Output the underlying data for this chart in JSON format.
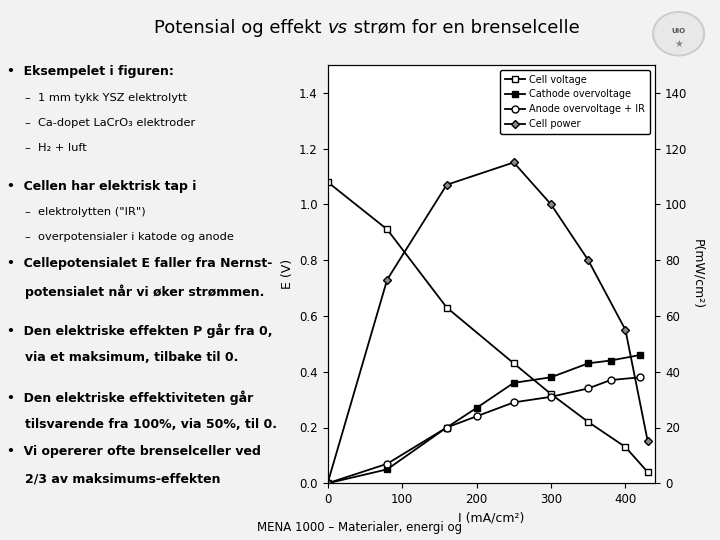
{
  "title_parts": [
    "Potensial og effekt ",
    "vs",
    " strøm for en brenselcelle"
  ],
  "xlabel": "I (mA/cm²)",
  "ylabel_left": "E (V)",
  "ylabel_right": "P(mW/cm²)",
  "xlim": [
    0,
    440
  ],
  "ylim_left": [
    0,
    1.5
  ],
  "ylim_right": [
    0,
    150
  ],
  "xticks": [
    0,
    100,
    200,
    300,
    400
  ],
  "yticks_left": [
    0.0,
    0.2,
    0.4,
    0.6,
    0.8,
    1.0,
    1.2,
    1.4
  ],
  "yticks_right": [
    0,
    20,
    40,
    60,
    80,
    100,
    120,
    140
  ],
  "cell_voltage_I": [
    0,
    80,
    160,
    250,
    300,
    350,
    400,
    430
  ],
  "cell_voltage_E": [
    1.08,
    0.91,
    0.63,
    0.43,
    0.32,
    0.22,
    0.13,
    0.04
  ],
  "cathode_over_I": [
    0,
    80,
    160,
    200,
    250,
    300,
    350,
    380,
    420
  ],
  "cathode_over_E": [
    0.0,
    0.05,
    0.2,
    0.27,
    0.36,
    0.38,
    0.43,
    0.44,
    0.46
  ],
  "anode_IR_I": [
    0,
    80,
    160,
    200,
    250,
    300,
    350,
    380,
    420
  ],
  "anode_IR_E": [
    0.0,
    0.07,
    0.2,
    0.24,
    0.29,
    0.31,
    0.34,
    0.37,
    0.38
  ],
  "cell_power_I": [
    0,
    80,
    160,
    250,
    300,
    350,
    400,
    430
  ],
  "cell_power_P": [
    0.0,
    73,
    107,
    115,
    100,
    80,
    55,
    15
  ],
  "legend_labels": [
    "Cell voltage",
    "Cathode overvoltage",
    "Anode overvoltage + IR",
    "Cell power"
  ],
  "footer": "MENA 1000 – Materialer, energi og",
  "background_color": "#f2f2f2",
  "text_color": "#000000"
}
